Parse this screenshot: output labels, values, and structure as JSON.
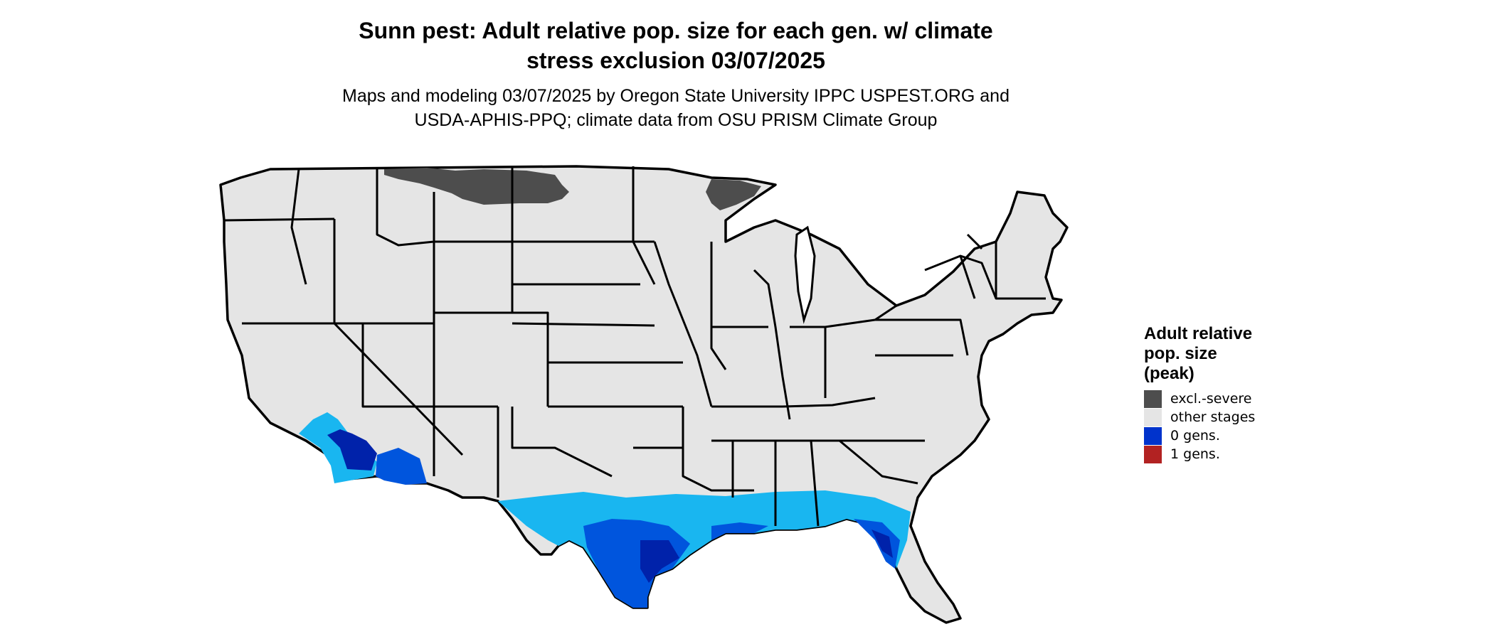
{
  "title_line1": "Sunn pest: Adult relative pop. size for each gen. w/ climate",
  "title_line2": "stress exclusion 03/07/2025",
  "subtitle_line1": "Maps and modeling 03/07/2025 by Oregon State University IPPC USPEST.ORG and",
  "subtitle_line2": "USDA-APHIS-PPQ; climate data from OSU PRISM Climate Group",
  "legend": {
    "title_line1": "Adult relative",
    "title_line2": "pop. size",
    "title_line3": "(peak)",
    "items": [
      {
        "label": "excl.-severe",
        "color": "#4d4d4d"
      },
      {
        "label": "other stages",
        "color": "#e5e5e5"
      },
      {
        "label": "0 gens.",
        "color": "#0033cc"
      },
      {
        "label": "1 gens.",
        "color": "#b22222"
      }
    ]
  },
  "map_colors": {
    "land": "#e5e5e5",
    "border": "#000000",
    "excluded": "#4d4d4d",
    "light_blue": "#19b6f0",
    "mid_blue": "#0055dd",
    "dark_blue": "#0022aa"
  }
}
